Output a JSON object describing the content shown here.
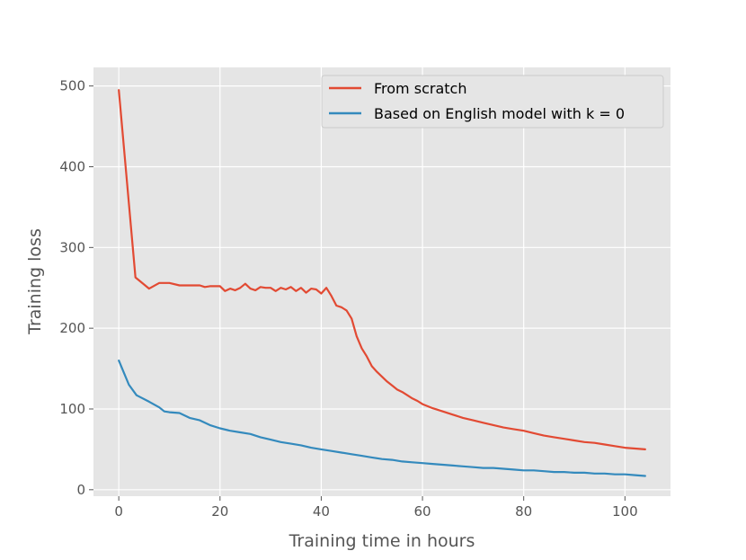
{
  "chart_data": {
    "type": "line",
    "xlabel": "Training time in hours",
    "ylabel": "Training loss",
    "xlim": [
      -5,
      109
    ],
    "ylim": [
      -8,
      523
    ],
    "x_ticks": [
      0,
      20,
      40,
      60,
      80,
      100
    ],
    "y_ticks": [
      0,
      100,
      200,
      300,
      400,
      500
    ],
    "grid": true,
    "legend_position": "top-right",
    "series": [
      {
        "name": "From scratch",
        "color": "#E24A33",
        "x": [
          0,
          3.3,
          6,
          8,
          10,
          12,
          14,
          16,
          17,
          18,
          20,
          21,
          22,
          23,
          24,
          25,
          26,
          27,
          28,
          29,
          30,
          31,
          32,
          33,
          34,
          35,
          36,
          37,
          38,
          39,
          40,
          41,
          42,
          43,
          44,
          45,
          46,
          47,
          48,
          49,
          50,
          51,
          52,
          53,
          54,
          55,
          56,
          57,
          58,
          59,
          60,
          62,
          64,
          66,
          68,
          70,
          72,
          74,
          76,
          78,
          80,
          82,
          84,
          86,
          88,
          90,
          92,
          94,
          96,
          98,
          100,
          102,
          104
        ],
        "y": [
          495,
          263,
          249,
          256,
          256,
          253,
          253,
          253,
          251,
          252,
          252,
          246,
          249,
          247,
          250,
          255,
          249,
          247,
          251,
          250,
          250,
          246,
          250,
          248,
          251,
          246,
          250,
          244,
          249,
          248,
          243,
          250,
          240,
          228,
          226,
          222,
          212,
          190,
          175,
          165,
          153,
          146,
          140,
          134,
          129,
          124,
          121,
          117,
          113,
          110,
          106,
          101,
          97,
          93,
          89,
          86,
          83,
          80,
          77,
          75,
          73,
          70,
          67,
          65,
          63,
          61,
          59,
          58,
          56,
          54,
          52,
          51,
          50
        ]
      },
      {
        "name": "Based on English model with k = 0",
        "color": "#348ABD",
        "x": [
          0,
          1,
          2,
          3.5,
          6,
          8,
          9,
          10,
          12,
          14,
          16,
          18,
          20,
          22,
          24,
          26,
          28,
          30,
          32,
          34,
          36,
          38,
          40,
          42,
          44,
          46,
          48,
          50,
          52,
          54,
          56,
          58,
          60,
          62,
          64,
          66,
          68,
          70,
          72,
          74,
          76,
          78,
          80,
          82,
          84,
          86,
          88,
          90,
          92,
          94,
          96,
          98,
          100,
          102,
          104
        ],
        "y": [
          160,
          145,
          130,
          117,
          109,
          102,
          97,
          96,
          95,
          89,
          86,
          80,
          76,
          73,
          71,
          69,
          65,
          62,
          59,
          57,
          55,
          52,
          50,
          48,
          46,
          44,
          42,
          40,
          38,
          37,
          35,
          34,
          33,
          32,
          31,
          30,
          29,
          28,
          27,
          27,
          26,
          25,
          24,
          24,
          23,
          22,
          22,
          21,
          21,
          20,
          20,
          19,
          19,
          18,
          17
        ]
      }
    ]
  }
}
